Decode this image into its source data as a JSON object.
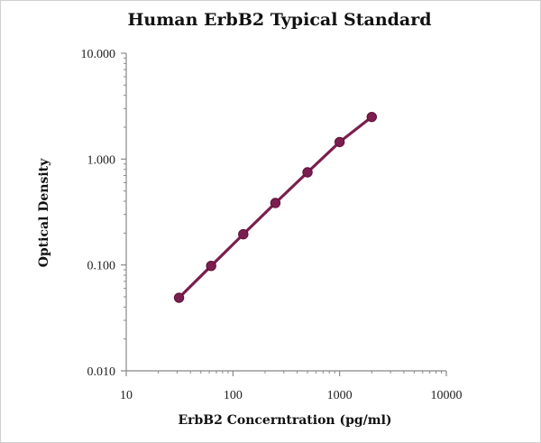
{
  "chart_data": {
    "type": "scatter",
    "title": "Human ErbB2 Typical Standard",
    "xlabel": "ErbB2 Concerntration (pg/ml)",
    "ylabel": "Optical Density",
    "xscale": "log",
    "yscale": "log",
    "xlim": [
      10,
      10000
    ],
    "ylim": [
      0.01,
      10
    ],
    "x_ticks": [
      "10",
      "100",
      "1000",
      "10000"
    ],
    "y_ticks": [
      "0.010",
      "0.100",
      "1.000",
      "10.000"
    ],
    "grid": false,
    "legend": "none",
    "fit_line": true,
    "series_color": "#7b1e4f",
    "series": [
      {
        "x": [
          31.25,
          62.5,
          125,
          250,
          500,
          1000,
          2000
        ],
        "y": [
          0.049,
          0.098,
          0.195,
          0.385,
          0.75,
          1.45,
          2.5
        ]
      }
    ]
  }
}
